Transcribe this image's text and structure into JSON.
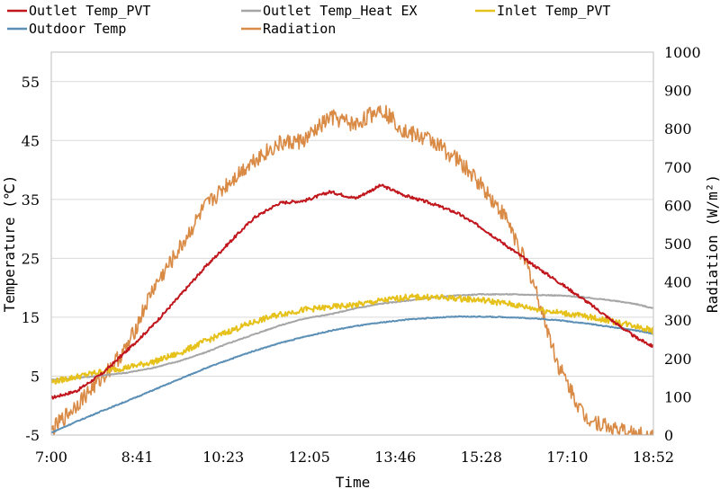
{
  "chart_data": {
    "type": "line",
    "xlabel": "Time",
    "ylabel": "Temperature (℃)",
    "y2label": "Radiation (W/m²)",
    "x_ticks": [
      "7:00",
      "8:41",
      "10:23",
      "12:05",
      "13:46",
      "15:28",
      "17:10",
      "18:52"
    ],
    "ylim": [
      -5,
      60
    ],
    "y_ticks": [
      -5,
      5,
      15,
      25,
      35,
      45,
      55
    ],
    "y2lim": [
      0,
      1000
    ],
    "y2_ticks": [
      0,
      100,
      200,
      300,
      400,
      500,
      600,
      700,
      800,
      900,
      1000
    ],
    "grid": "horizontal",
    "legend": "top",
    "x_hours": [
      7.0,
      7.5,
      8.0,
      8.5,
      9.0,
      9.5,
      10.0,
      10.5,
      11.0,
      11.5,
      12.0,
      12.5,
      13.0,
      13.5,
      14.0,
      14.5,
      15.0,
      15.5,
      16.0,
      16.5,
      17.0,
      17.5,
      18.0,
      18.5,
      18.87
    ],
    "series": [
      {
        "name": "Outlet Temp_PVT",
        "color": "#c0161c",
        "axis": "left",
        "values": [
          1.3,
          2.5,
          5.4,
          9.4,
          13.6,
          18.3,
          23.2,
          27.6,
          31.9,
          34.4,
          34.8,
          36.3,
          35.2,
          37.4,
          35.6,
          34.3,
          32.7,
          30.1,
          27.0,
          23.9,
          21.0,
          18.0,
          14.8,
          11.7,
          10.0
        ]
      },
      {
        "name": "Outlet Temp_Heat EX",
        "color": "#a6a6a6",
        "axis": "left",
        "values": [
          4.4,
          4.7,
          5.1,
          5.6,
          6.4,
          7.5,
          8.9,
          10.6,
          12.1,
          13.6,
          14.8,
          15.5,
          16.5,
          17.3,
          17.8,
          18.3,
          18.7,
          18.9,
          18.9,
          18.8,
          18.7,
          18.4,
          17.9,
          17.3,
          16.5
        ]
      },
      {
        "name": "Inlet Temp_PVT",
        "color": "#e6c11a",
        "axis": "left",
        "values": [
          4.0,
          4.9,
          5.8,
          6.5,
          7.4,
          8.8,
          10.8,
          12.6,
          14.2,
          15.5,
          16.3,
          16.7,
          17.1,
          17.8,
          18.4,
          18.4,
          18.2,
          17.9,
          17.3,
          16.5,
          15.8,
          15.2,
          14.4,
          13.6,
          12.7
        ]
      },
      {
        "name": "Outdoor Temp",
        "color": "#5b8fb5",
        "axis": "left",
        "values": [
          -4.6,
          -2.7,
          -0.9,
          0.8,
          2.6,
          4.4,
          6.2,
          7.8,
          9.3,
          10.6,
          11.7,
          12.7,
          13.5,
          14.1,
          14.6,
          14.9,
          15.1,
          15.1,
          15.0,
          14.8,
          14.5,
          14.0,
          13.4,
          12.8,
          12.2
        ]
      },
      {
        "name": "Radiation",
        "color": "#d98a45",
        "axis": "right",
        "values": [
          10,
          80,
          150,
          230,
          380,
          480,
          590,
          660,
          720,
          760,
          770,
          830,
          810,
          855,
          790,
          770,
          720,
          650,
          560,
          400,
          180,
          50,
          20,
          0,
          0
        ]
      }
    ]
  }
}
